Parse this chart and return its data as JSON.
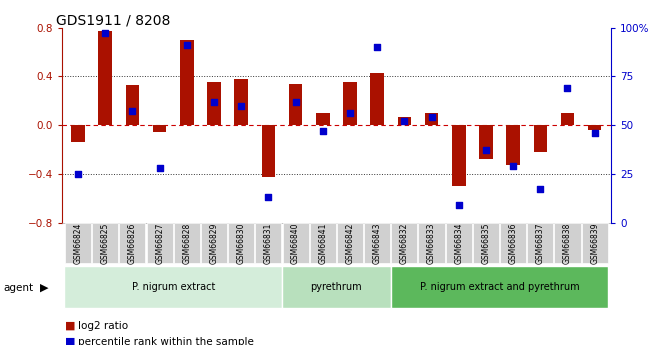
{
  "title": "GDS1911 / 8208",
  "samples": [
    "GSM66824",
    "GSM66825",
    "GSM66826",
    "GSM66827",
    "GSM66828",
    "GSM66829",
    "GSM66830",
    "GSM66831",
    "GSM66840",
    "GSM66841",
    "GSM66842",
    "GSM66843",
    "GSM66832",
    "GSM66833",
    "GSM66834",
    "GSM66835",
    "GSM66836",
    "GSM66837",
    "GSM66838",
    "GSM66839"
  ],
  "log2_ratio": [
    -0.14,
    0.77,
    0.33,
    -0.06,
    0.7,
    0.35,
    0.38,
    -0.43,
    0.34,
    0.1,
    0.35,
    0.43,
    0.07,
    0.1,
    -0.5,
    -0.28,
    -0.33,
    -0.22,
    0.1,
    -0.04
  ],
  "percentile": [
    25,
    97,
    57,
    28,
    91,
    62,
    60,
    13,
    62,
    47,
    56,
    90,
    52,
    54,
    9,
    37,
    29,
    17,
    69,
    46
  ],
  "groups": [
    {
      "label": "P. nigrum extract",
      "start": 0,
      "end": 7,
      "color": "#d4edda"
    },
    {
      "label": "pyrethrum",
      "start": 8,
      "end": 11,
      "color": "#b8e0bd"
    },
    {
      "label": "P. nigrum extract and pyrethrum",
      "start": 12,
      "end": 19,
      "color": "#5cb85c"
    }
  ],
  "ylim": [
    -0.8,
    0.8
  ],
  "yticks_left": [
    -0.8,
    -0.4,
    0.0,
    0.4,
    0.8
  ],
  "yticks_right": [
    0,
    25,
    50,
    75,
    100
  ],
  "bar_color": "#aa1100",
  "dot_color": "#0000cc",
  "dot_size": 18,
  "hline_color": "#cc0000",
  "dotted_color": "#333333",
  "bg_color": "#ffffff"
}
